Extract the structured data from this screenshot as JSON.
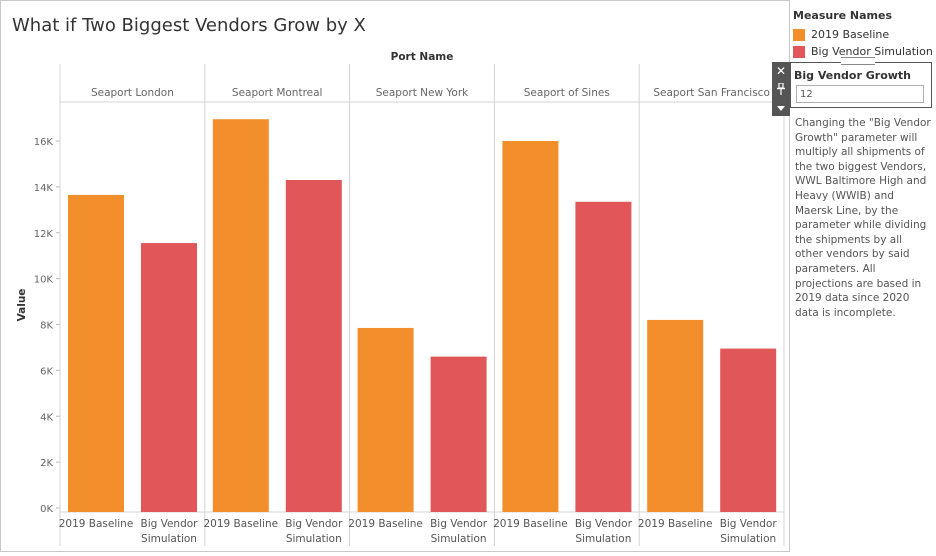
{
  "title": "What if Two Biggest Vendors Grow by X",
  "legend": {
    "title": "Measure Names",
    "items": [
      {
        "label": "2019 Baseline",
        "color": "#f28e2b"
      },
      {
        "label": "Big Vendor Simulation",
        "color": "#e15759"
      }
    ]
  },
  "parameter": {
    "label": "Big Vendor Growth",
    "value": "12",
    "icons": [
      "close-icon",
      "pin-icon",
      "dropdown-arrow-icon"
    ],
    "description": "Changing the \"Big Vendor Growth\" parameter will multiply all shipments of the two biggest Vendors, WWL Baltimore High and Heavy (WWIB) and Maersk Line, by the parameter while dividing the shipments by all other vendors by said parameters. All projections are based in 2019 data since 2020 data is incomplete."
  },
  "chart_data": {
    "type": "bar",
    "column_header_title": "Port Name",
    "ylabel": "Value",
    "ylim": [
      0,
      17000
    ],
    "yticks": [
      0,
      2000,
      4000,
      6000,
      8000,
      10000,
      12000,
      14000,
      16000
    ],
    "ytick_labels": [
      "0K",
      "2K",
      "4K",
      "6K",
      "8K",
      "10K",
      "12K",
      "14K",
      "16K"
    ],
    "grid": false,
    "legend_position": "top-right",
    "panels": [
      "Seaport London",
      "Seaport Montreal",
      "Seaport New York",
      "Seaport of Sines",
      "Seaport San Francisco"
    ],
    "category_labels": [
      [
        "2019 Baseline"
      ],
      [
        "Big Vendor",
        "Simulation"
      ]
    ],
    "series": [
      {
        "name": "2019 Baseline",
        "color": "#f28e2b",
        "values": [
          13650,
          16950,
          7850,
          16000,
          8200
        ]
      },
      {
        "name": "Big Vendor Simulation",
        "color": "#e15759",
        "values": [
          11550,
          14300,
          6600,
          13350,
          6950
        ]
      }
    ]
  }
}
